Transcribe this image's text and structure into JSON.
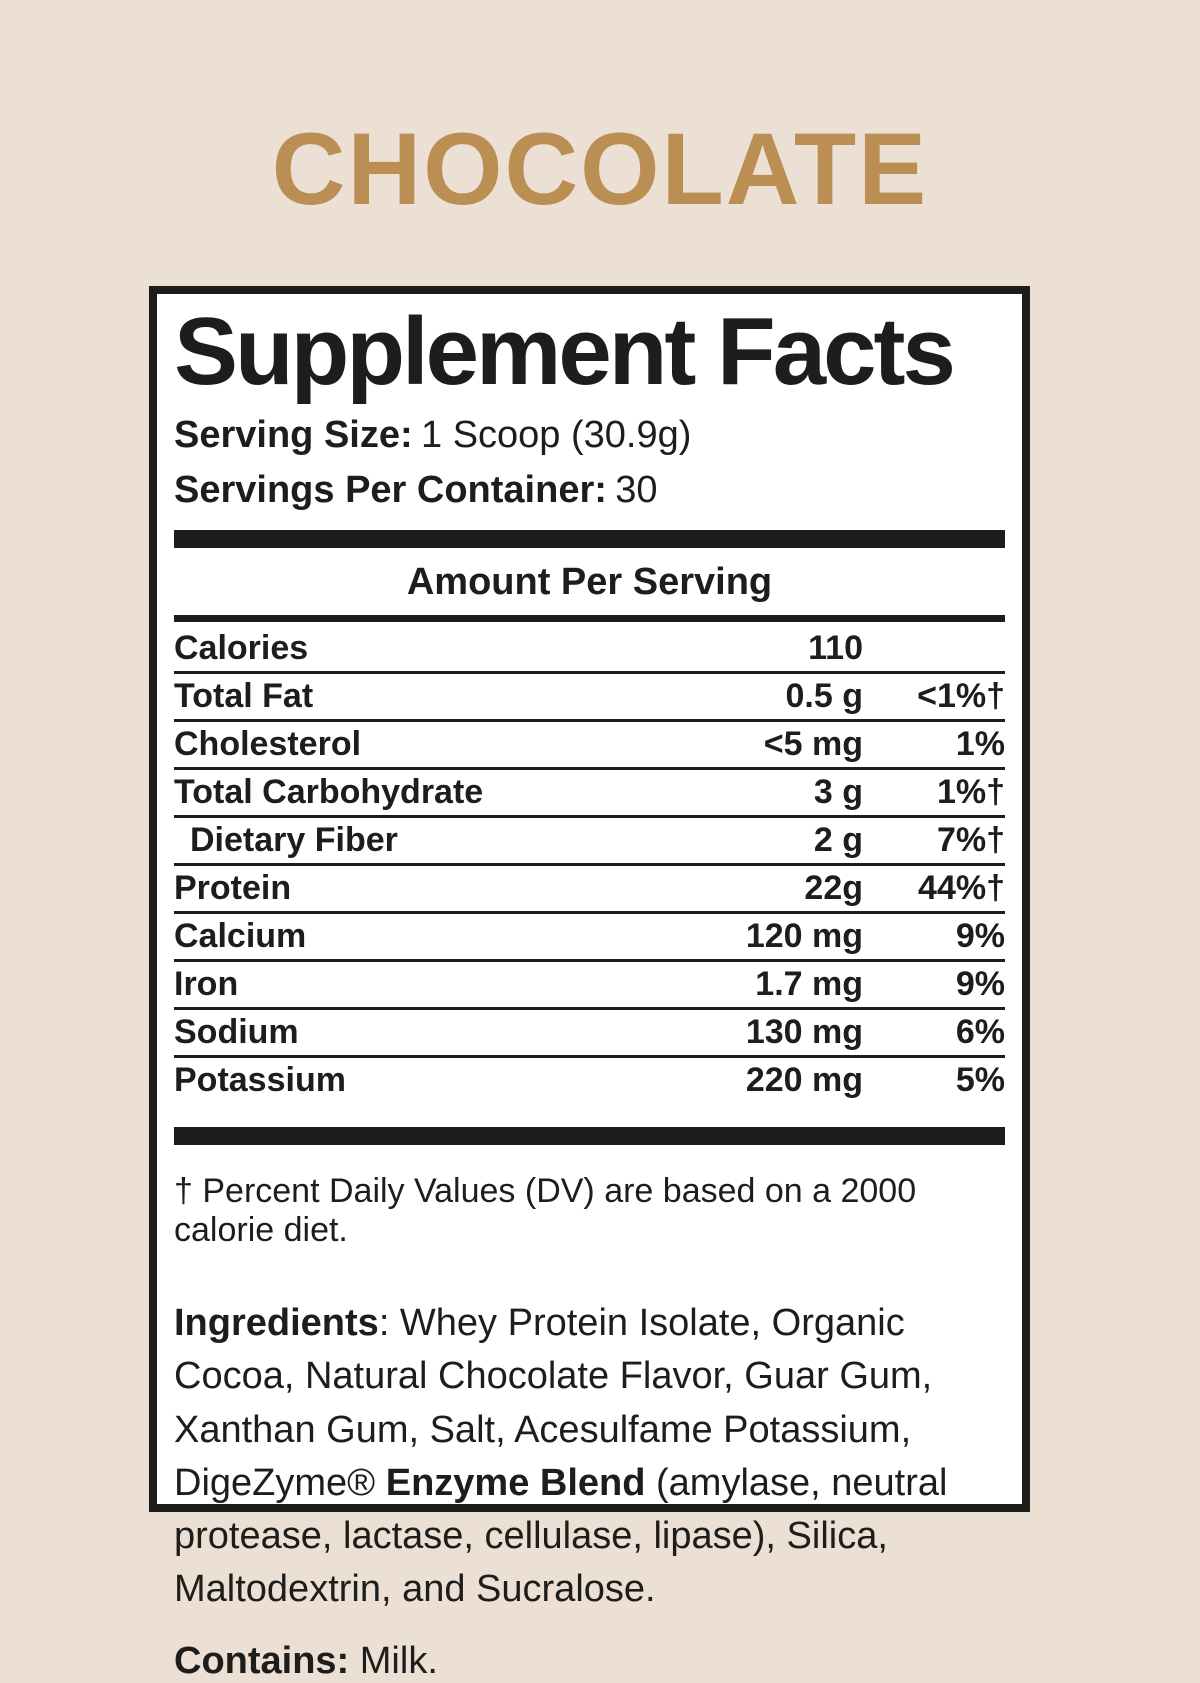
{
  "flavor_title": "CHOCOLATE",
  "panel": {
    "title": "Supplement Facts",
    "serving_size_label": "Serving Size:",
    "serving_size_value": "1 Scoop (30.9g)",
    "servings_label": "Servings Per Container:",
    "servings_value": "30",
    "amount_header": "Amount Per Serving",
    "rows": [
      {
        "name": "Calories",
        "amount": "110",
        "dv": "",
        "indent": false
      },
      {
        "name": "Total Fat",
        "amount": "0.5 g",
        "dv": "<1%†",
        "indent": false
      },
      {
        "name": "Cholesterol",
        "amount": "<5 mg",
        "dv": "1%",
        "indent": false
      },
      {
        "name": "Total Carbohydrate",
        "amount": "3 g",
        "dv": "1%†",
        "indent": false
      },
      {
        "name": "Dietary Fiber",
        "amount": "2 g",
        "dv": "7%†",
        "indent": true
      },
      {
        "name": "Protein",
        "amount": "22g",
        "dv": "44%†",
        "indent": false
      },
      {
        "name": "Calcium",
        "amount": "120 mg",
        "dv": "9%",
        "indent": false
      },
      {
        "name": "Iron",
        "amount": "1.7 mg",
        "dv": "9%",
        "indent": false
      },
      {
        "name": "Sodium",
        "amount": "130 mg",
        "dv": "6%",
        "indent": false
      },
      {
        "name": "Potassium",
        "amount": "220 mg",
        "dv": "5%",
        "indent": false
      }
    ],
    "footnote": "† Percent Daily Values (DV) are based on a 2000 calorie diet.",
    "ingredients_label": "Ingredients",
    "ingredients_text_1": ": Whey Protein Isolate, Organic Cocoa, Natural Chocolate Flavor, Guar Gum, Xanthan Gum, Salt, Acesulfame Potassium, DigeZyme® ",
    "ingredients_bold_segment": "Enzyme Blend",
    "ingredients_text_2": " (amylase, neutral protease, lactase, cellulase, lipase), Silica, Maltodextrin, and Sucralose.",
    "contains_label": "Contains:",
    "contains_value": " Milk."
  },
  "colors": {
    "background": "#ece0d4",
    "accent_gold": "#bb8f54",
    "text_black": "#1d1d1b",
    "panel_background": "#ffffff"
  }
}
